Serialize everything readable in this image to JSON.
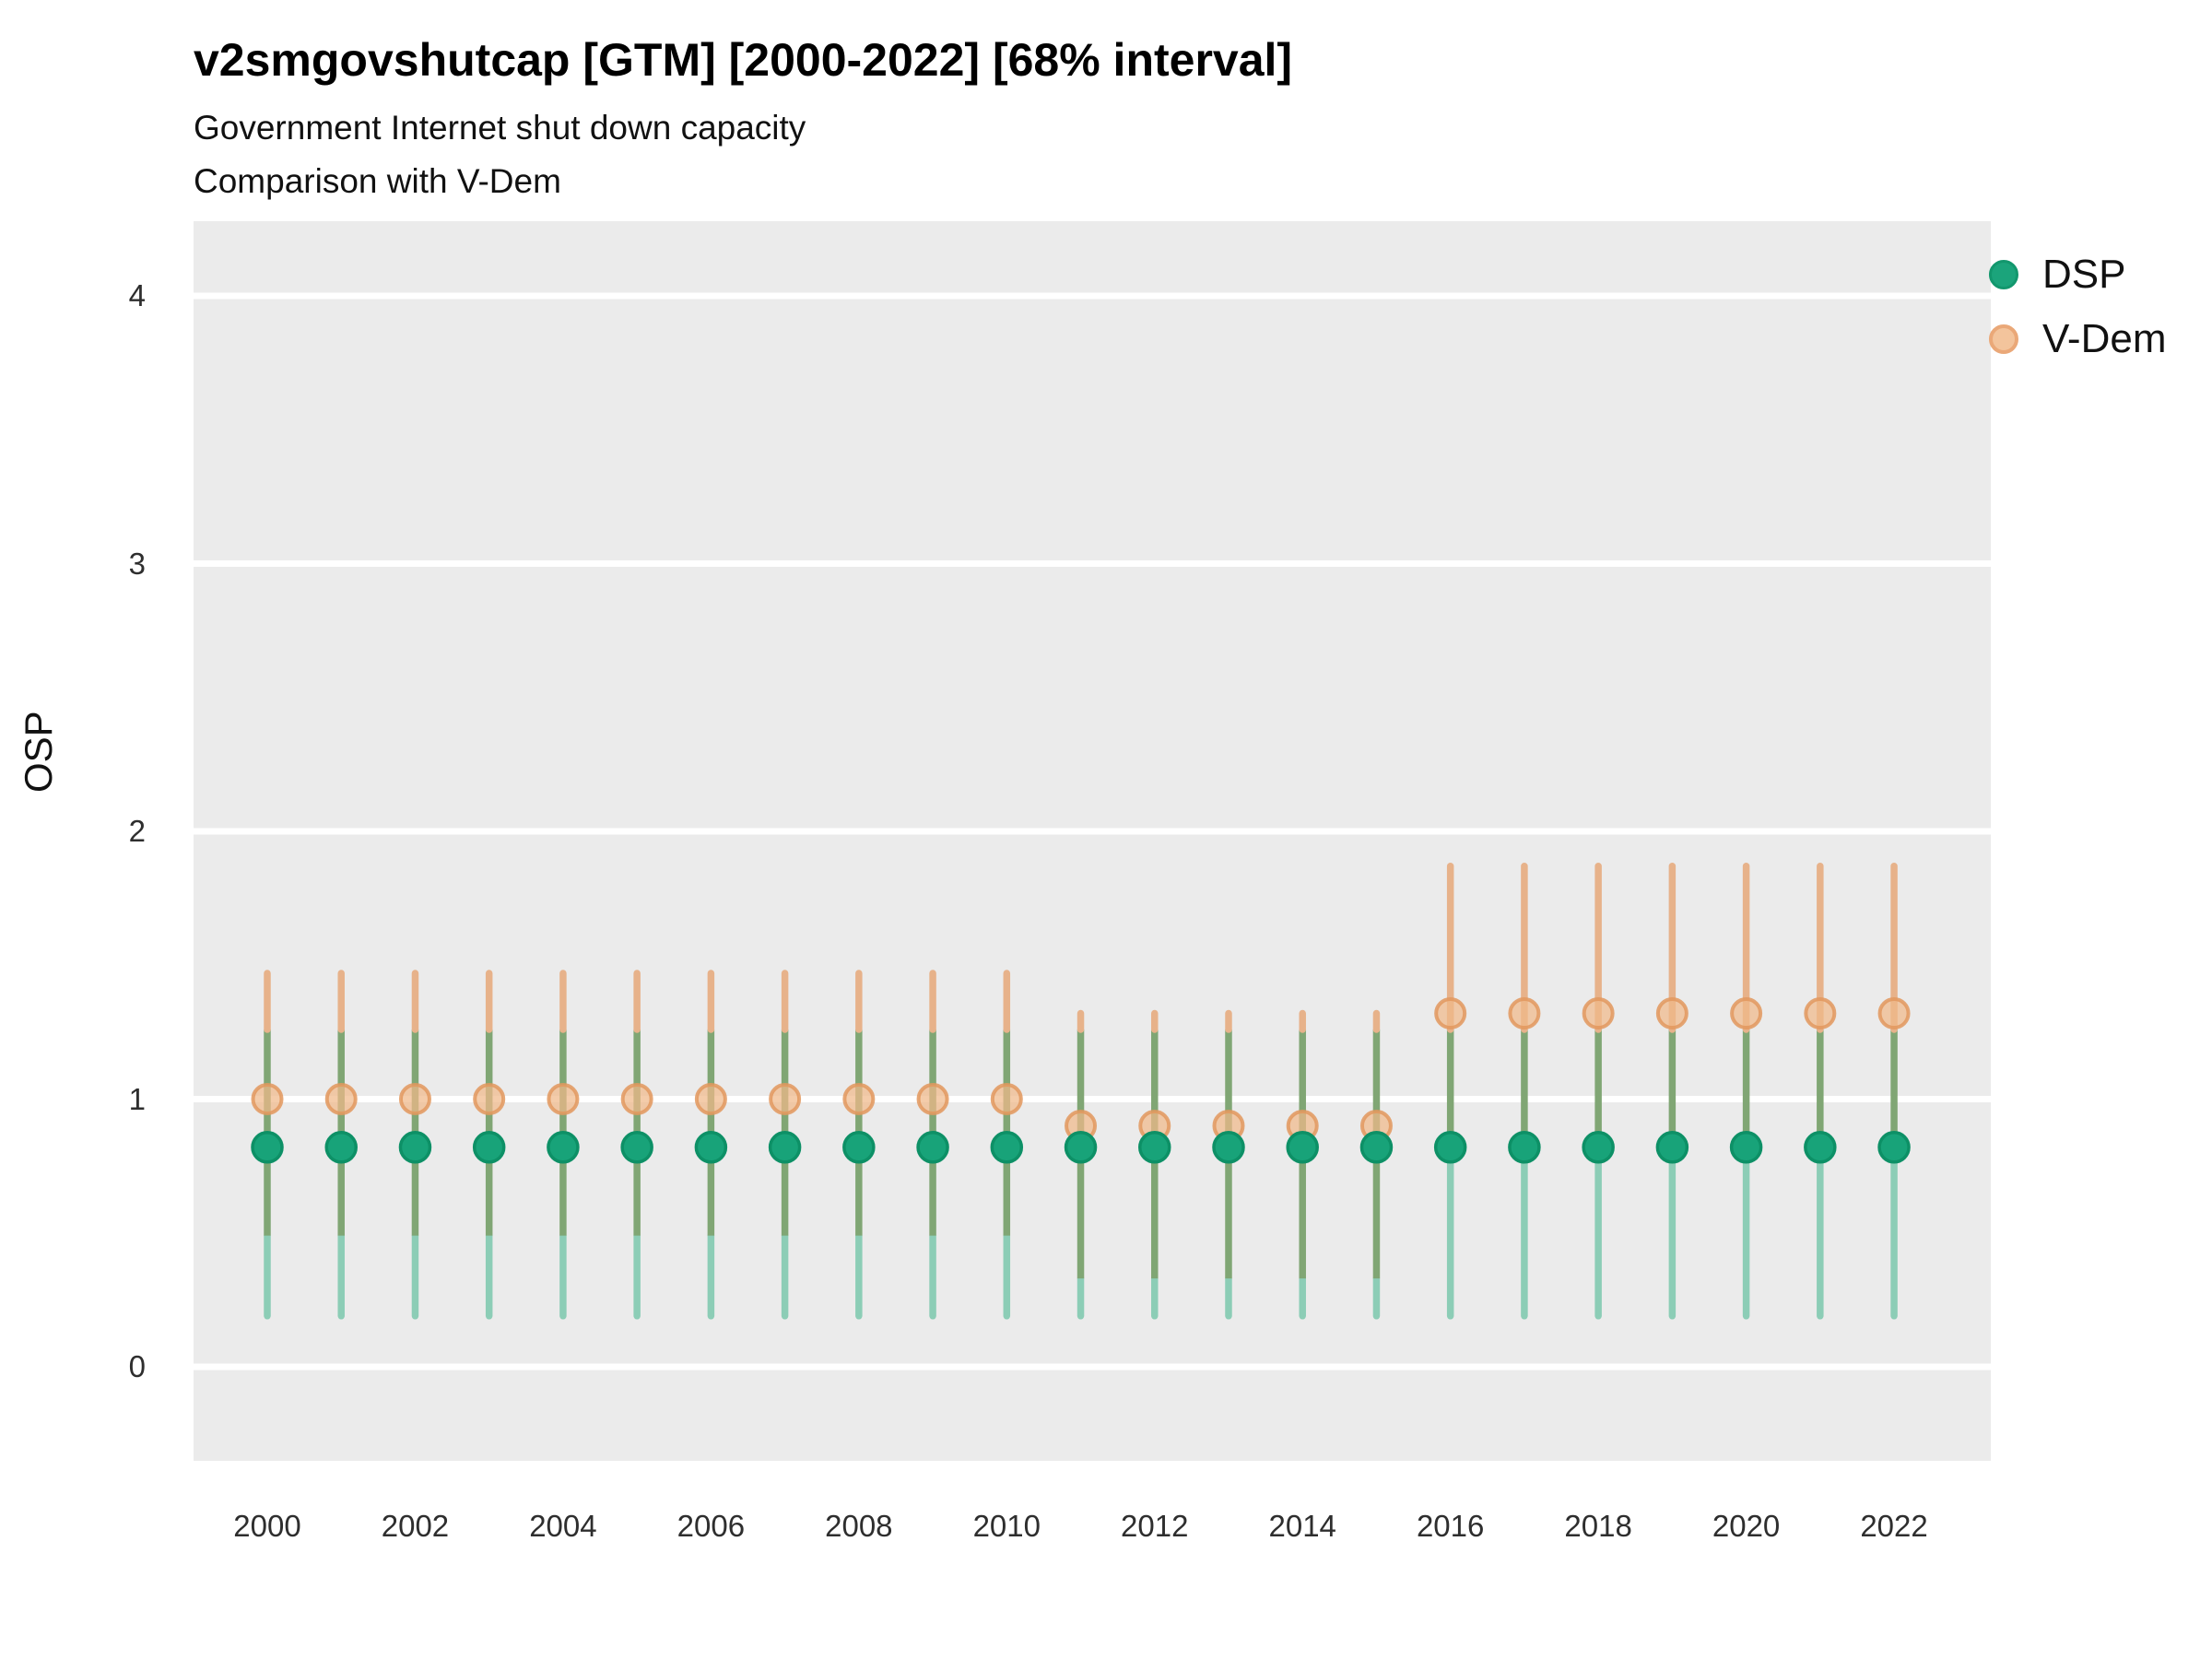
{
  "header": {
    "title": "v2smgovshutcap [GTM] [2000-2022] [68% interval]",
    "subtitle_line1": "Government Internet shut down capacity",
    "subtitle_line2": "Comparison with V-Dem"
  },
  "legend": {
    "items": [
      {
        "label": "DSP",
        "marker": "filled-green-circle",
        "color": "#1BA47B"
      },
      {
        "label": "V-Dem",
        "marker": "outlined-orange-circle",
        "color": "#EAA878"
      }
    ],
    "position": "right"
  },
  "chart_data": {
    "type": "scatter",
    "subtype": "pointrange-errorbar",
    "title": "v2smgovshutcap [GTM] [2000-2022] [68% interval]",
    "xlabel": "",
    "ylabel": "OSP",
    "interval_level": "68%",
    "x": [
      2000,
      2001,
      2002,
      2003,
      2004,
      2005,
      2006,
      2007,
      2008,
      2009,
      2010,
      2011,
      2012,
      2013,
      2014,
      2015,
      2016,
      2017,
      2018,
      2019,
      2020,
      2021,
      2022
    ],
    "xtick_labels": [
      "2000",
      "2002",
      "2004",
      "2006",
      "2008",
      "2010",
      "2012",
      "2014",
      "2016",
      "2018",
      "2020",
      "2022"
    ],
    "yticks": [
      0,
      1,
      2,
      3,
      4
    ],
    "ylim": [
      -0.35,
      4.28
    ],
    "grid": "white-major-horizontal-on-grey-panel",
    "series": [
      {
        "name": "DSP",
        "values": [
          0.82,
          0.82,
          0.82,
          0.82,
          0.82,
          0.82,
          0.82,
          0.82,
          0.82,
          0.82,
          0.82,
          0.82,
          0.82,
          0.82,
          0.82,
          0.82,
          0.82,
          0.82,
          0.82,
          0.82,
          0.82,
          0.82,
          0.82
        ],
        "lower": [
          0.19,
          0.19,
          0.19,
          0.19,
          0.19,
          0.19,
          0.19,
          0.19,
          0.19,
          0.19,
          0.19,
          0.19,
          0.19,
          0.19,
          0.19,
          0.19,
          0.19,
          0.19,
          0.19,
          0.19,
          0.19,
          0.19,
          0.19
        ],
        "upper": [
          1.26,
          1.26,
          1.26,
          1.26,
          1.26,
          1.26,
          1.26,
          1.26,
          1.26,
          1.26,
          1.26,
          1.26,
          1.26,
          1.26,
          1.26,
          1.26,
          1.26,
          1.26,
          1.26,
          1.26,
          1.26,
          1.26,
          1.26
        ],
        "point_color": "#18A379",
        "point_stroke": "#0D9066",
        "bar_color": "#8CCDB6"
      },
      {
        "name": "V-Dem",
        "values": [
          1.0,
          1.0,
          1.0,
          1.0,
          1.0,
          1.0,
          1.0,
          1.0,
          1.0,
          1.0,
          1.0,
          0.9,
          0.9,
          0.9,
          0.9,
          0.9,
          1.32,
          1.32,
          1.32,
          1.32,
          1.32,
          1.32,
          1.32
        ],
        "lower": [
          0.49,
          0.49,
          0.49,
          0.49,
          0.49,
          0.49,
          0.49,
          0.49,
          0.49,
          0.49,
          0.49,
          0.33,
          0.33,
          0.33,
          0.33,
          0.33,
          0.82,
          0.82,
          0.82,
          0.82,
          0.82,
          0.82,
          0.82
        ],
        "upper": [
          1.47,
          1.47,
          1.47,
          1.47,
          1.47,
          1.47,
          1.47,
          1.47,
          1.47,
          1.47,
          1.47,
          1.32,
          1.32,
          1.32,
          1.32,
          1.32,
          1.87,
          1.87,
          1.87,
          1.87,
          1.87,
          1.87,
          1.87
        ],
        "point_color": "#F0B989",
        "point_stroke": "#E2985E",
        "bar_color": "#E7B28A"
      }
    ],
    "overlap_bar_color": "#80A674",
    "panel_color": "#EBEBEB",
    "gridline_color": "#FFFFFF"
  }
}
